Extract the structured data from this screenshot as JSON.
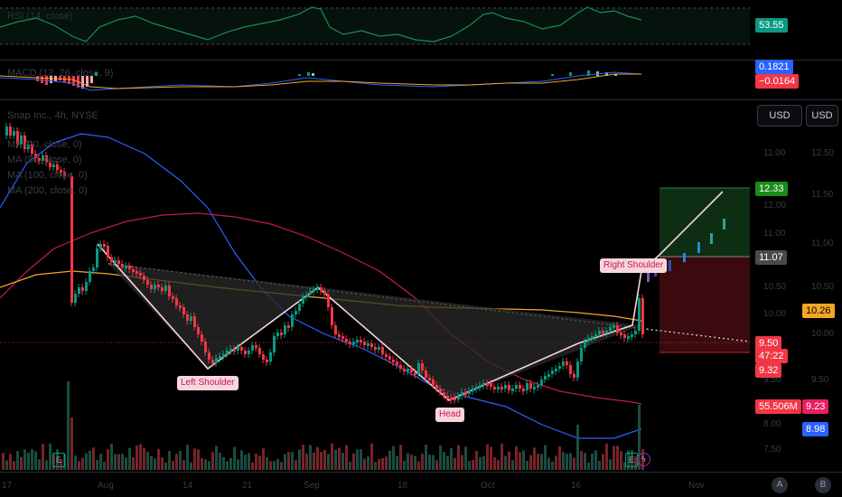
{
  "rsi": {
    "label": "RSI (14, close)",
    "value": "53.55",
    "value_color": "#089981"
  },
  "macd": {
    "label": "MACD (12, 26, close, 9)",
    "value1": "0.1821",
    "value2": "−0.0164"
  },
  "main": {
    "symbol": "Snap Inc., 4h, NYSE",
    "ma_lines": [
      "MA (20, close, 0)",
      "MA (50, close, 0)",
      "MA (100, close, 0)",
      "MA (200, close, 0)"
    ],
    "currency_left": "USD",
    "currency_right": "USD",
    "price_ticks_left": [
      "11.00",
      "12.00",
      "11.50",
      "11.00",
      "10.50",
      "10.00",
      "9.50",
      "8.00",
      "7.50"
    ],
    "price_ticks_right": [
      "12.50",
      "11.50",
      "11.00",
      "10.50",
      "10.00",
      "9.50"
    ],
    "tags": {
      "target": "12.33",
      "entry": "11.07",
      "ma200": "10.26",
      "last_price": "9.50",
      "countdown": "47:22",
      "stop": "9.32",
      "volume": "55.506M",
      "ma_a": "9.23",
      "ma_b": "8.98"
    },
    "pattern_labels": {
      "left_shoulder": "Left Shoulder",
      "head": "Head",
      "right_shoulder": "Right Shoulder"
    }
  },
  "x_axis": [
    "17",
    "Aug",
    "14",
    "21",
    "Sep",
    "18",
    "Oct",
    "16",
    "Nov"
  ],
  "bottom_buttons": {
    "auto": "A",
    "settings": "B"
  },
  "colors": {
    "up": "#089981",
    "down": "#f23645",
    "ma_blue": "#2962ff",
    "ma_red": "#e91e63",
    "ma_orange": "#f5a623",
    "target_green": "#1a5e1a",
    "stop_red": "#5a0e12"
  }
}
